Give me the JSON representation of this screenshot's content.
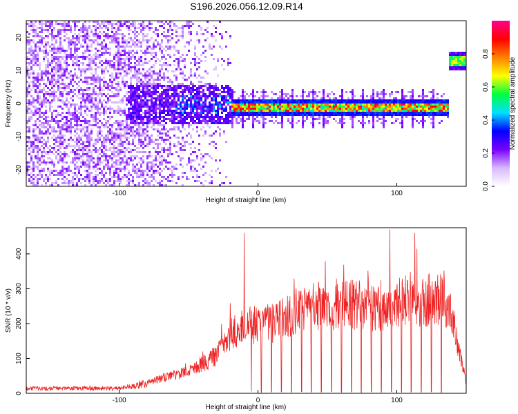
{
  "title": "S196.2026.056.12.09.R14",
  "chart_data": [
    {
      "type": "heatmap",
      "xlabel": "Height of straight line (km)",
      "ylabel": "Frequency (Hz)",
      "xlim": [
        -167,
        150
      ],
      "ylim": [
        -25,
        25
      ],
      "xticks": [
        -100,
        0,
        100
      ],
      "yticks": [
        -20,
        -10,
        0,
        10,
        20
      ],
      "colorbar": {
        "label": "Normalized spectral amplitude",
        "range": [
          0,
          1
        ],
        "ticks": [
          0.0,
          0.2,
          0.4,
          0.6,
          0.8
        ],
        "palette": [
          "#ffffff",
          "#d8b8ff",
          "#7a00ff",
          "#0000ff",
          "#00e0ff",
          "#00ff40",
          "#ffff00",
          "#ff8000",
          "#ff0000",
          "#ff0090"
        ]
      },
      "features": {
        "noise_region_km": [
          -167,
          -20
        ],
        "carrier_band_km": [
          -20,
          137
        ],
        "carrier_freq_hz": -1,
        "jump_at_km": 137,
        "jump_freq_hz": 13
      }
    },
    {
      "type": "line",
      "xlabel": "Height of straight line (km)",
      "ylabel": "SNR (10 * v/v)",
      "xlim": [
        -167,
        150
      ],
      "ylim": [
        0,
        475
      ],
      "xticks": [
        -100,
        0,
        100
      ],
      "yticks": [
        0,
        100,
        200,
        300,
        400
      ],
      "color": "#ee2222",
      "envelope": [
        {
          "km": -167,
          "snr": 20
        },
        {
          "km": -100,
          "snr": 20
        },
        {
          "km": -80,
          "snr": 40
        },
        {
          "km": -50,
          "snr": 80
        },
        {
          "km": -30,
          "snr": 140
        },
        {
          "km": -20,
          "snr": 220
        },
        {
          "km": -10,
          "snr": 250
        },
        {
          "km": 10,
          "snr": 260
        },
        {
          "km": 40,
          "snr": 320
        },
        {
          "km": 70,
          "snr": 330
        },
        {
          "km": 90,
          "snr": 310
        },
        {
          "km": 110,
          "snr": 350
        },
        {
          "km": 137,
          "snr": 340
        },
        {
          "km": 150,
          "snr": 40
        }
      ],
      "spikes": [
        {
          "km": -10,
          "snr": 460
        },
        {
          "km": 95,
          "snr": 470
        },
        {
          "km": 113,
          "snr": 460
        }
      ],
      "dropouts_start_km": -5,
      "dropouts_spacing_km": 7.2
    }
  ]
}
